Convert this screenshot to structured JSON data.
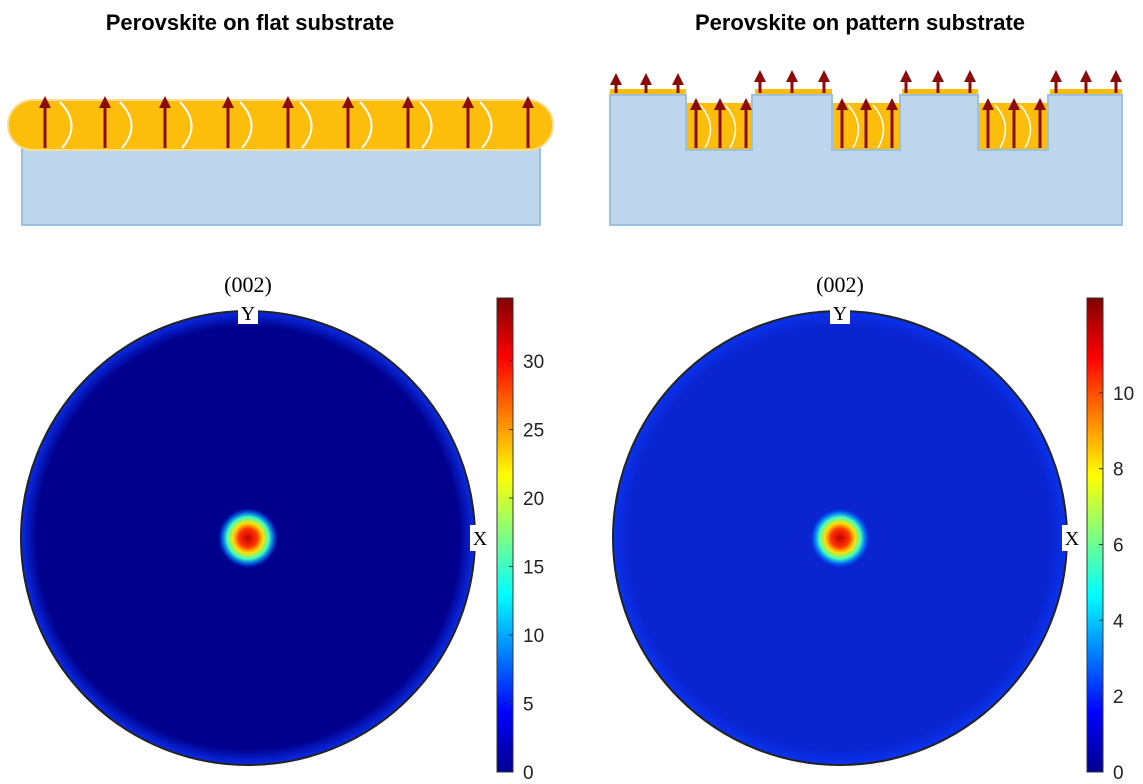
{
  "chart_data": [
    {
      "type": "pole_figure",
      "title": "Perovskite on flat substrate",
      "subtitle": "(002)",
      "x_label": "X",
      "y_label": "Y",
      "clim": [
        0,
        34.6
      ],
      "cticks": [
        0,
        5,
        10,
        15,
        20,
        25,
        30
      ],
      "background_color": "#00008c",
      "rim_color": "#0a2ce6"
    },
    {
      "type": "pole_figure",
      "title": "Perovskite on pattern substrate",
      "subtitle": "(002)",
      "x_label": "X",
      "y_label": "Y",
      "clim": [
        0,
        12.5
      ],
      "cticks": [
        0,
        2,
        4,
        6,
        8,
        10
      ],
      "background_color": "#0a24cf",
      "rim_color": "#0a33ee"
    }
  ]
}
